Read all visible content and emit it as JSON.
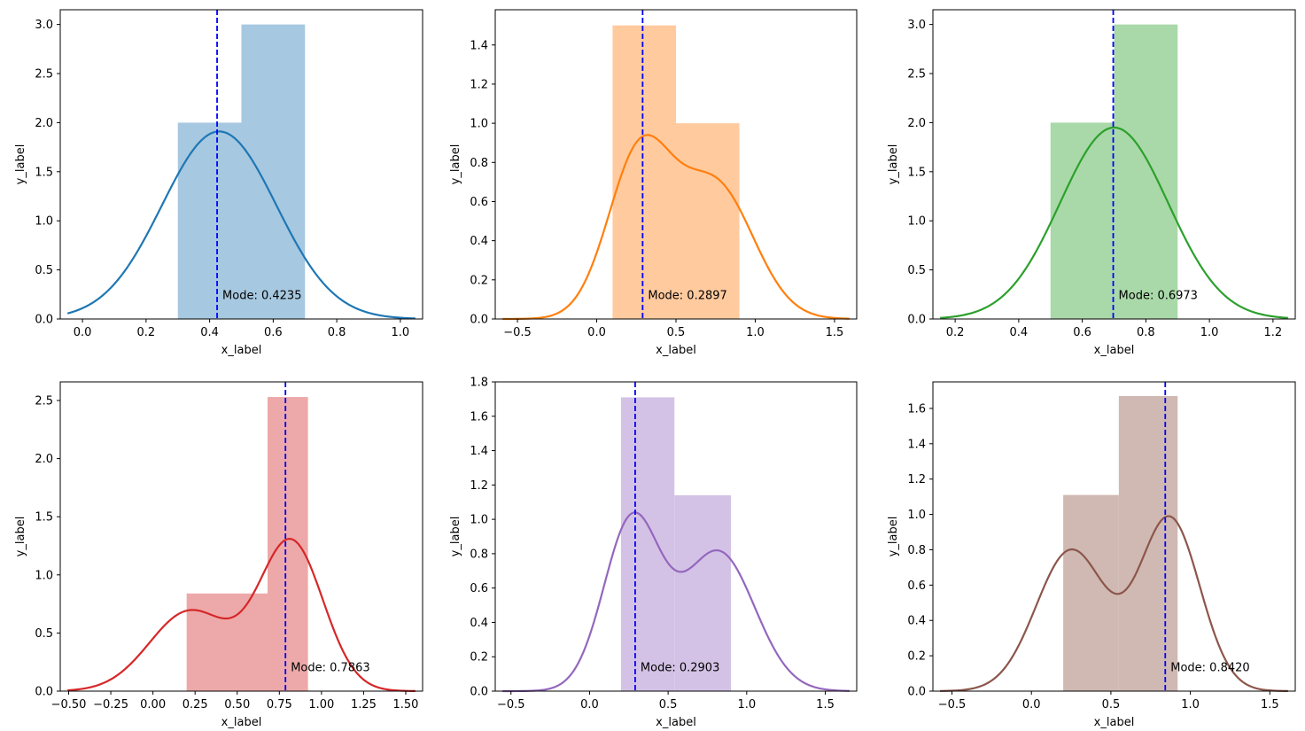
{
  "figure": {
    "background": "#ffffff",
    "mode_line_color": "#0000ff"
  },
  "chart_data": [
    {
      "type": "histogram+kde",
      "xlabel": "x_label",
      "ylabel": "y_label",
      "xlim": [
        -0.07,
        1.07
      ],
      "ylim": [
        0,
        3.15
      ],
      "xticks": [
        0.0,
        0.2,
        0.4,
        0.6,
        0.8,
        1.0
      ],
      "xtick_labels": [
        "0.0",
        "0.2",
        "0.4",
        "0.6",
        "0.8",
        "1.0"
      ],
      "yticks": [
        0.0,
        0.5,
        1.0,
        1.5,
        2.0,
        2.5,
        3.0
      ],
      "ytick_labels": [
        "0.0",
        "0.5",
        "1.0",
        "1.5",
        "2.0",
        "2.5",
        "3.0"
      ],
      "line_color": "#1f77b4",
      "bar_color": "#a6c8e0",
      "bins": [
        {
          "x0": 0.3,
          "x1": 0.5,
          "height": 2.0
        },
        {
          "x0": 0.5,
          "x1": 0.7,
          "height": 3.0
        }
      ],
      "kde_mean": 0.43,
      "kde_sd": 0.18,
      "kde_peak": 1.91,
      "mode": 0.4235,
      "mode_label": "Mode: 0.4235"
    },
    {
      "type": "histogram+kde",
      "xlabel": "x_label",
      "ylabel": "y_label",
      "xlim": [
        -0.64,
        1.64
      ],
      "ylim": [
        0,
        1.58
      ],
      "xticks": [
        -0.5,
        0.0,
        0.5,
        1.0,
        1.5
      ],
      "xtick_labels": [
        "−0.5",
        "0.0",
        "0.5",
        "1.0",
        "1.5"
      ],
      "yticks": [
        0.0,
        0.2,
        0.4,
        0.6,
        0.8,
        1.0,
        1.2,
        1.4
      ],
      "ytick_labels": [
        "0.0",
        "0.2",
        "0.4",
        "0.6",
        "0.8",
        "1.0",
        "1.2",
        "1.4"
      ],
      "line_color": "#ff7f0e",
      "bar_color": "#ffca9e",
      "bins": [
        {
          "x0": 0.1,
          "x1": 0.5,
          "height": 1.5
        },
        {
          "x0": 0.5,
          "x1": 0.9,
          "height": 1.0
        }
      ],
      "kde_components": [
        {
          "mean": 0.27,
          "sd": 0.2,
          "weight": 0.55
        },
        {
          "mean": 0.75,
          "sd": 0.24,
          "weight": 0.45
        }
      ],
      "kde_peak": 0.94,
      "mode": 0.2897,
      "mode_label": "Mode: 0.2897"
    },
    {
      "type": "histogram+kde",
      "xlabel": "x_label",
      "ylabel": "y_label",
      "xlim": [
        0.13,
        1.27
      ],
      "ylim": [
        0,
        3.15
      ],
      "xticks": [
        0.2,
        0.4,
        0.6,
        0.8,
        1.0,
        1.2
      ],
      "xtick_labels": [
        "0.2",
        "0.4",
        "0.6",
        "0.8",
        "1.0",
        "1.2"
      ],
      "yticks": [
        0.0,
        0.5,
        1.0,
        1.5,
        2.0,
        2.5,
        3.0
      ],
      "ytick_labels": [
        "0.0",
        "0.5",
        "1.0",
        "1.5",
        "2.0",
        "2.5",
        "3.0"
      ],
      "line_color": "#2ca02c",
      "bar_color": "#a9d9a8",
      "bins": [
        {
          "x0": 0.5,
          "x1": 0.7,
          "height": 2.0
        },
        {
          "x0": 0.7,
          "x1": 0.9,
          "height": 3.0
        }
      ],
      "kde_mean": 0.7,
      "kde_sd": 0.17,
      "kde_peak": 1.95,
      "mode": 0.6973,
      "mode_label": "Mode: 0.6973"
    },
    {
      "type": "histogram+kde",
      "xlabel": "x_label",
      "ylabel": "y_label",
      "xlim": [
        -0.55,
        1.6
      ],
      "ylim": [
        0,
        2.66
      ],
      "xticks": [
        -0.5,
        -0.25,
        0.0,
        0.25,
        0.5,
        0.75,
        1.0,
        1.25,
        1.5
      ],
      "xtick_labels": [
        "−0.50",
        "−0.25",
        "0.00",
        "0.25",
        "0.50",
        "0.75",
        "1.00",
        "1.25",
        "1.50"
      ],
      "yticks": [
        0.0,
        0.5,
        1.0,
        1.5,
        2.0,
        2.5
      ],
      "ytick_labels": [
        "0.0",
        "0.5",
        "1.0",
        "1.5",
        "2.0",
        "2.5"
      ],
      "line_color": "#d62728",
      "bar_color": "#eda9a9",
      "bins": [
        {
          "x0": 0.2,
          "x1": 0.68,
          "height": 0.84
        },
        {
          "x0": 0.68,
          "x1": 0.92,
          "height": 2.53
        }
      ],
      "kde_components": [
        {
          "mean": 0.22,
          "sd": 0.24,
          "weight": 0.35
        },
        {
          "mean": 0.82,
          "sd": 0.19,
          "weight": 0.65
        }
      ],
      "kde_peak": 1.31,
      "mode": 0.7863,
      "mode_label": "Mode: 0.7863"
    },
    {
      "type": "histogram+kde",
      "xlabel": "x_label",
      "ylabel": "y_label",
      "xlim": [
        -0.6,
        1.7
      ],
      "ylim": [
        0,
        1.8
      ],
      "xticks": [
        -0.5,
        0.0,
        0.5,
        1.0,
        1.5
      ],
      "xtick_labels": [
        "−0.5",
        "0.0",
        "0.5",
        "1.0",
        "1.5"
      ],
      "yticks": [
        0.0,
        0.2,
        0.4,
        0.6,
        0.8,
        1.0,
        1.2,
        1.4,
        1.6,
        1.8
      ],
      "ytick_labels": [
        "0.0",
        "0.2",
        "0.4",
        "0.6",
        "0.8",
        "1.0",
        "1.2",
        "1.4",
        "1.6",
        "1.8"
      ],
      "line_color": "#9467bd",
      "bar_color": "#d3c2e5",
      "bins": [
        {
          "x0": 0.2,
          "x1": 0.54,
          "height": 1.71
        },
        {
          "x0": 0.54,
          "x1": 0.9,
          "height": 1.14
        }
      ],
      "kde_components": [
        {
          "mean": 0.27,
          "sd": 0.18,
          "weight": 0.55
        },
        {
          "mean": 0.82,
          "sd": 0.23,
          "weight": 0.45
        }
      ],
      "kde_peak": 1.04,
      "mode": 0.2903,
      "mode_label": "Mode: 0.2903"
    },
    {
      "type": "histogram+kde",
      "xlabel": "x_label",
      "ylabel": "y_label",
      "xlim": [
        -0.62,
        1.66
      ],
      "ylim": [
        0,
        1.75
      ],
      "xticks": [
        -0.5,
        0.0,
        0.5,
        1.0,
        1.5
      ],
      "xtick_labels": [
        "−0.5",
        "0.0",
        "0.5",
        "1.0",
        "1.5"
      ],
      "yticks": [
        0.0,
        0.2,
        0.4,
        0.6,
        0.8,
        1.0,
        1.2,
        1.4,
        1.6
      ],
      "ytick_labels": [
        "0.0",
        "0.2",
        "0.4",
        "0.6",
        "0.8",
        "1.0",
        "1.2",
        "1.4",
        "1.6"
      ],
      "line_color": "#8c564b",
      "bar_color": "#d0b9b3",
      "bins": [
        {
          "x0": 0.2,
          "x1": 0.55,
          "height": 1.11
        },
        {
          "x0": 0.55,
          "x1": 0.92,
          "height": 1.67
        }
      ],
      "kde_components": [
        {
          "mean": 0.25,
          "sd": 0.22,
          "weight": 0.45
        },
        {
          "mean": 0.87,
          "sd": 0.19,
          "weight": 0.55
        }
      ],
      "kde_peak": 0.99,
      "mode": 0.842,
      "mode_label": "Mode: 0.8420"
    }
  ]
}
